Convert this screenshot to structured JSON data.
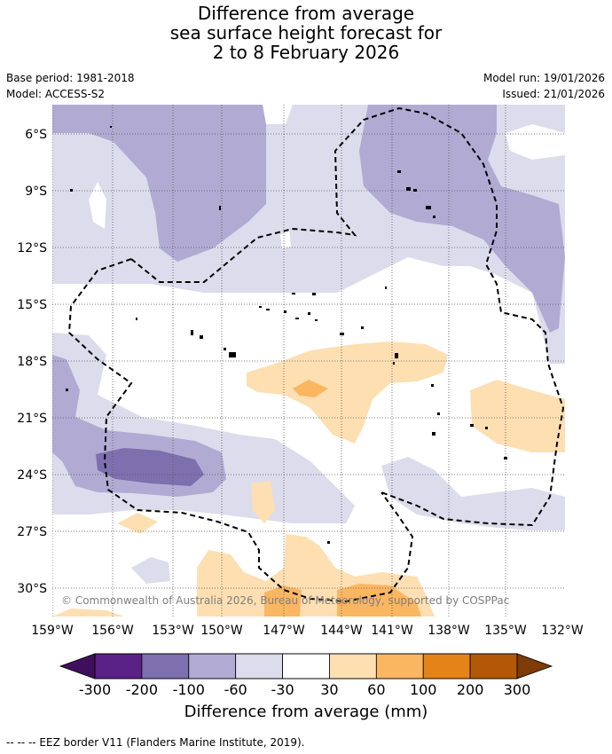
{
  "title": {
    "line1": "Difference from average",
    "line2": "sea surface height forecast for",
    "line3": "2 to 8 February 2026"
  },
  "meta": {
    "base_period": "Base period: 1981-2018",
    "model": "Model: ACCESS-S2",
    "model_run": "Model run: 19/01/2026",
    "issued": "Issued: 21/01/2026"
  },
  "map": {
    "lon_labels": [
      "159°W",
      "156°W",
      "153°W",
      "150°W",
      "147°W",
      "144°W",
      "141°W",
      "138°W",
      "135°W",
      "132°W"
    ],
    "lat_labels": [
      "6°S",
      "9°S",
      "12°S",
      "15°S",
      "18°S",
      "21°S",
      "24°S",
      "27°S",
      "30°S"
    ],
    "copyright": "© Commonwealth of Australia 2026, Bureau of Meteorology, supported by COSPPac"
  },
  "colorbar": {
    "ticks": [
      "-300",
      "-200",
      "-100",
      "-60",
      "-30",
      "30",
      "60",
      "100",
      "200",
      "300"
    ],
    "colors": [
      "#3f0f5c",
      "#5a2187",
      "#7e6fae",
      "#b1abd3",
      "#dcdcec",
      "#ffffff",
      "#fedfb2",
      "#fbb662",
      "#e38318",
      "#b35806",
      "#7f3b08"
    ],
    "label": "Difference from average (mm)"
  },
  "footnote": "--  --  -- EEZ border V11 (Flanders Marine Institute, 2019)."
}
